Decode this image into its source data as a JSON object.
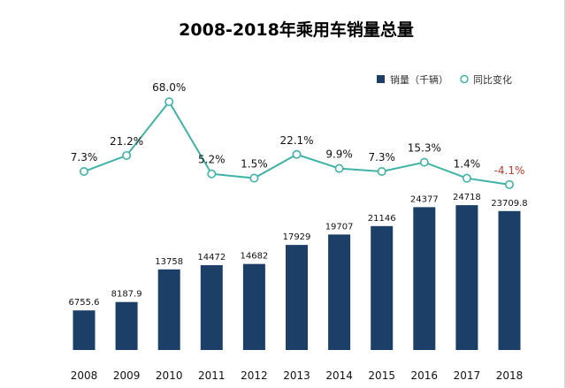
{
  "chart_data": {
    "type": "bar",
    "title": "2008-2018年乘用车销量总量",
    "categories": [
      "2008",
      "2009",
      "2010",
      "2011",
      "2012",
      "2013",
      "2014",
      "2015",
      "2016",
      "2017",
      "2018"
    ],
    "series": [
      {
        "name": "销量（千辆）",
        "type": "bar",
        "values": [
          6755.6,
          8187.9,
          13758,
          14472,
          14682,
          17929,
          19707,
          21146,
          24377,
          24718,
          23709.8
        ],
        "labels": [
          "6755.6",
          "8187.9",
          "13758",
          "14472",
          "14682",
          "17929",
          "19707",
          "21146",
          "24377",
          "24718",
          "23709.8"
        ],
        "color": "#1b3f66"
      },
      {
        "name": "同比变化",
        "type": "line",
        "values": [
          7.3,
          21.2,
          68.0,
          5.2,
          1.5,
          22.1,
          9.9,
          7.3,
          15.3,
          1.4,
          -4.1
        ],
        "labels": [
          "7.3%",
          "21.2%",
          "68.0%",
          "5.2%",
          "1.5%",
          "22.1%",
          "9.9%",
          "7.3%",
          "15.3%",
          "1.4%",
          "-4.1%"
        ],
        "color": "#3fb3a6",
        "negative_color": "#c0392b"
      }
    ],
    "legend": "top-right",
    "grid": false
  }
}
